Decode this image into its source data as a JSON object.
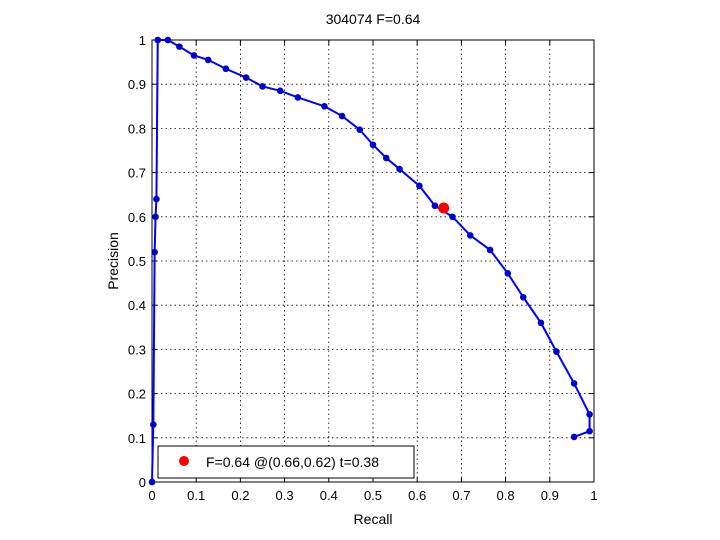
{
  "chart_data": {
    "type": "line",
    "title": "304074 F=0.64",
    "xlabel": "Recall",
    "ylabel": "Precision",
    "xlim": [
      0,
      1
    ],
    "ylim": [
      0,
      1
    ],
    "grid": true,
    "x_ticks": [
      "0",
      "0.1",
      "0.2",
      "0.3",
      "0.4",
      "0.5",
      "0.6",
      "0.7",
      "0.8",
      "0.9",
      "1"
    ],
    "y_ticks": [
      "0",
      "0.1",
      "0.2",
      "0.3",
      "0.4",
      "0.5",
      "0.6",
      "0.7",
      "0.8",
      "0.9",
      "1"
    ],
    "line_color": "#0000ff",
    "marker_color": "#0000cc",
    "highlight_color": "#ff0000",
    "series": [
      {
        "x": [
          0.0,
          0.003,
          0.006,
          0.008,
          0.01,
          0.013,
          0.036,
          0.062,
          0.095,
          0.127,
          0.167,
          0.213,
          0.25,
          0.29,
          0.33,
          0.39,
          0.43,
          0.47,
          0.5,
          0.53,
          0.56,
          0.605,
          0.64,
          0.68,
          0.72,
          0.765,
          0.805,
          0.84,
          0.88,
          0.915,
          0.955,
          0.99,
          0.99,
          0.955
        ],
        "y": [
          0.0,
          0.13,
          0.52,
          0.6,
          0.64,
          1.0,
          1.0,
          0.985,
          0.965,
          0.955,
          0.935,
          0.915,
          0.895,
          0.885,
          0.87,
          0.85,
          0.828,
          0.797,
          0.763,
          0.733,
          0.708,
          0.67,
          0.625,
          0.6,
          0.558,
          0.525,
          0.472,
          0.418,
          0.36,
          0.295,
          0.223,
          0.153,
          0.115,
          0.102
        ]
      }
    ],
    "highlight_point": {
      "x": 0.66,
      "y": 0.62
    },
    "legend": {
      "position": "bottom-left",
      "entries": [
        "F=0.64 @(0.66,0.62) t=0.38"
      ]
    }
  }
}
